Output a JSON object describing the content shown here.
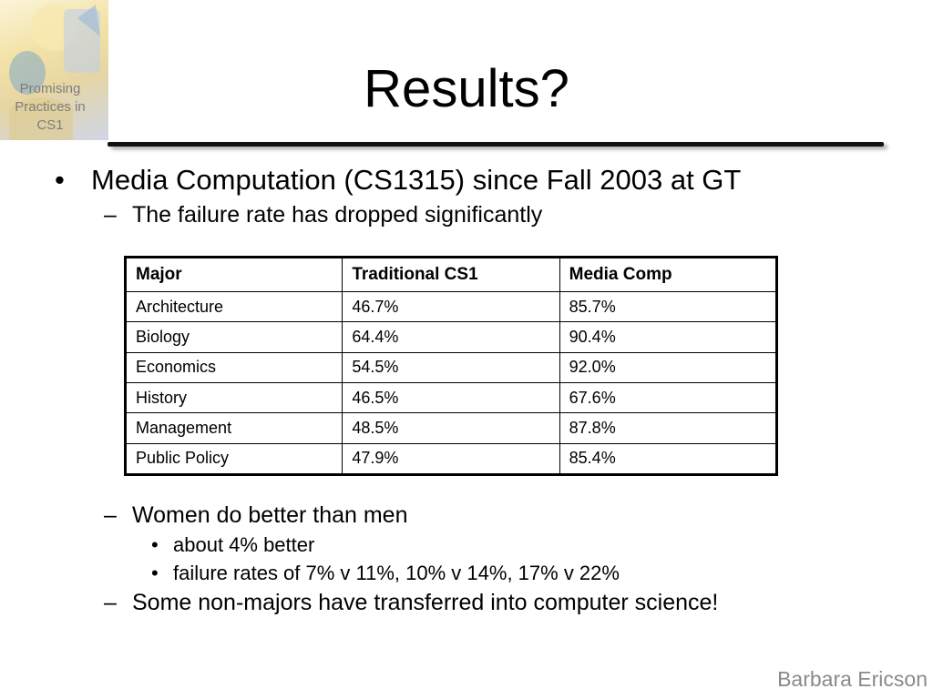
{
  "logo": {
    "text_lines": [
      "Promising",
      "Practices in",
      "CS1"
    ]
  },
  "title": "Results?",
  "bullets": {
    "main": "Media Computation (CS1315) since Fall 2003 at GT",
    "sub1": "The failure rate has dropped significantly",
    "sub2": "Women do better than men",
    "sub2_points": [
      "about 4% better",
      "failure rates of 7% v 11%, 10% v 14%, 17% v 22%"
    ],
    "sub3": "Some non-majors have transferred into computer science!"
  },
  "markers": {
    "level1": "•",
    "level2": "–",
    "level3": "•"
  },
  "table": {
    "headers": [
      "Major",
      "Traditional CS1",
      "Media Comp"
    ],
    "rows": [
      [
        "Architecture",
        "46.7%",
        "85.7%"
      ],
      [
        "Biology",
        "64.4%",
        "90.4%"
      ],
      [
        "Economics",
        "54.5%",
        "92.0%"
      ],
      [
        "History",
        "46.5%",
        "67.6%"
      ],
      [
        "Management",
        "48.5%",
        "87.8%"
      ],
      [
        "Public Policy",
        "47.9%",
        "85.4%"
      ]
    ]
  },
  "author": "Barbara Ericson"
}
